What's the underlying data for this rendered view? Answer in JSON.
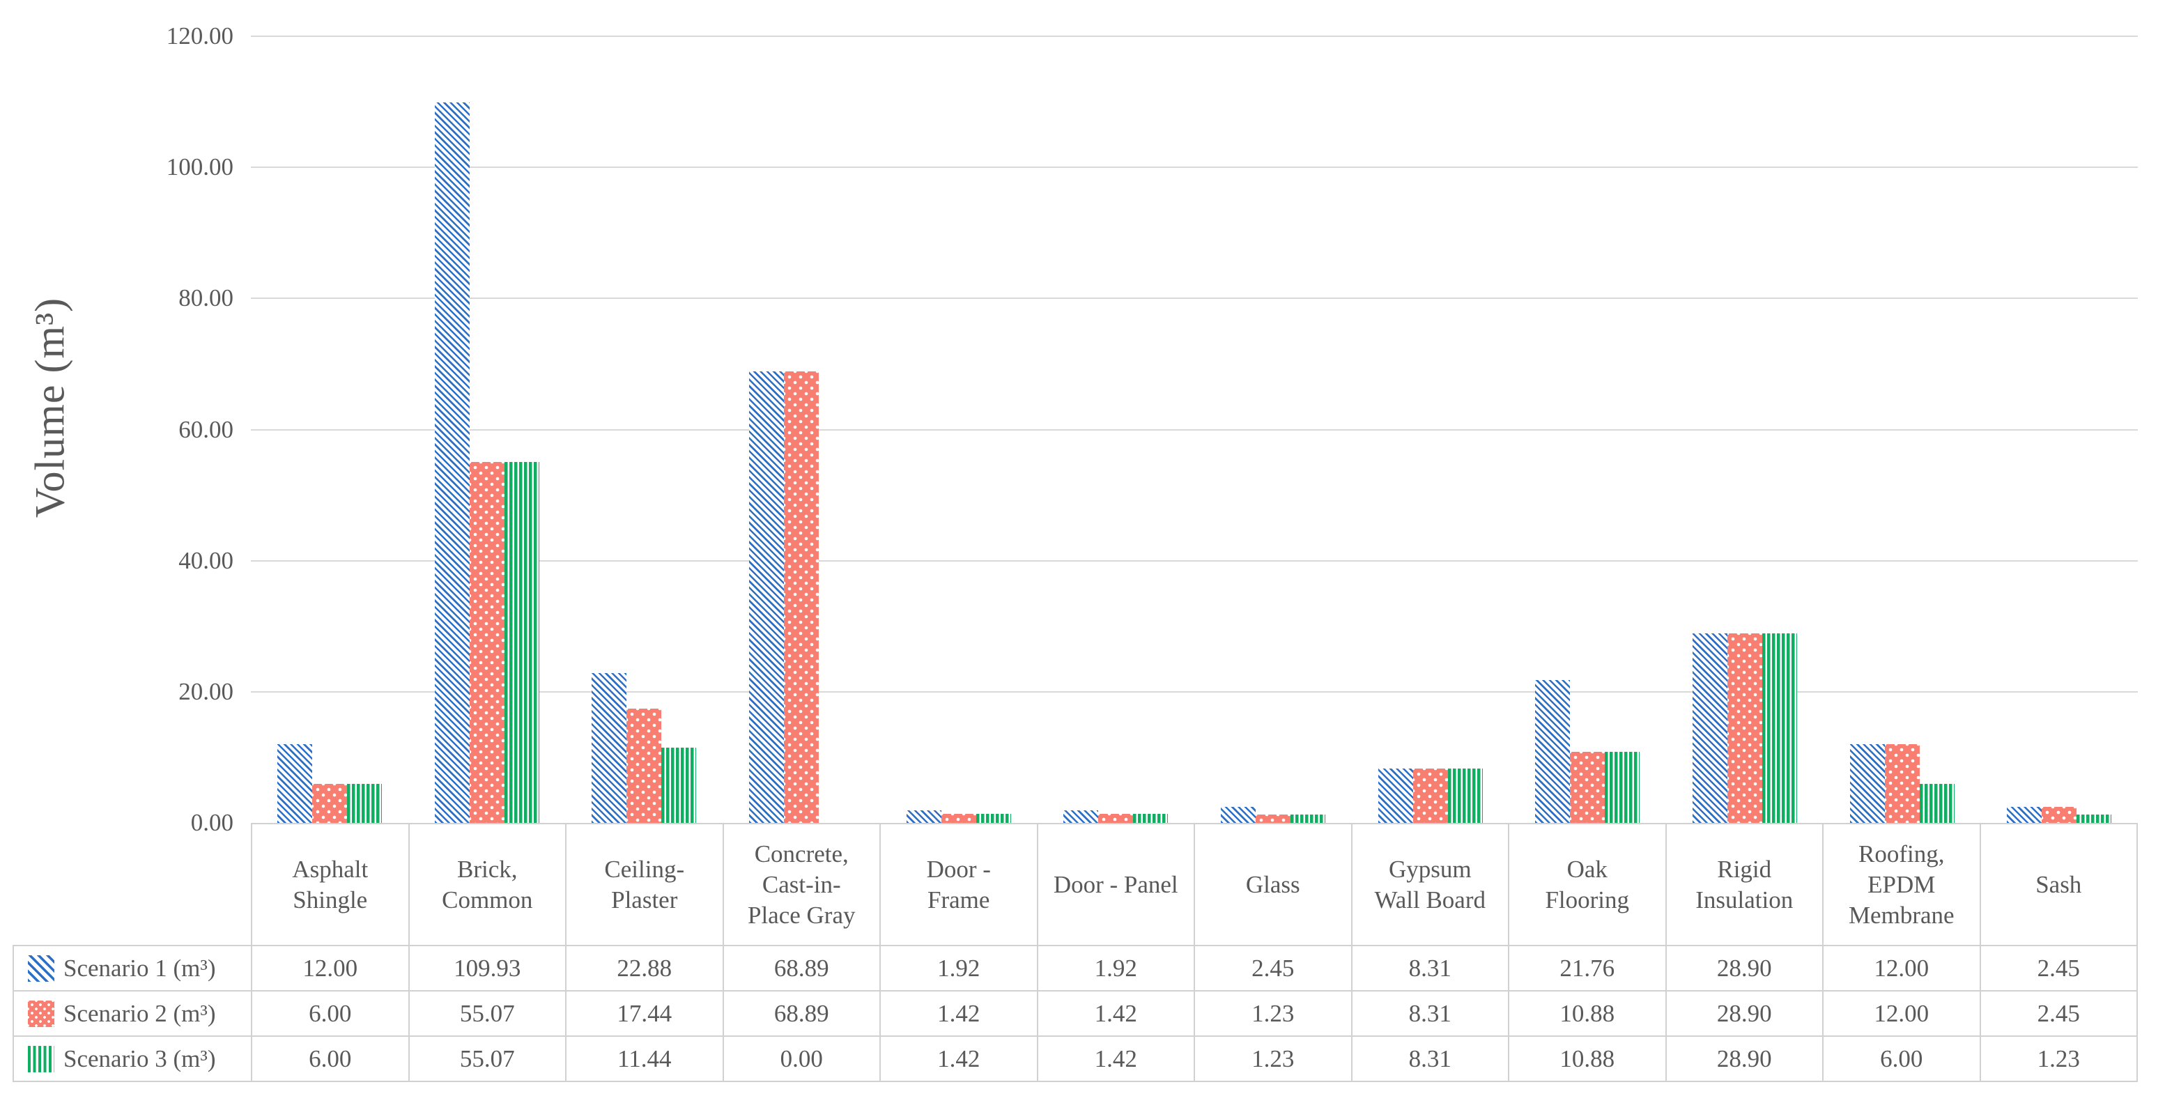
{
  "page": {
    "background": "#FFFFFF"
  },
  "chart_data": {
    "type": "bar",
    "title": "",
    "ylabel": "Volume (m³)",
    "xlabel": "",
    "ylim": [
      0,
      120
    ],
    "ytick_step": 20,
    "y_ticks": [
      "120.00",
      "100.00",
      "80.00",
      "60.00",
      "40.00",
      "20.00",
      "0.00"
    ],
    "grid": true,
    "legend_position": "data-table-left-column",
    "categories": [
      "Asphalt Shingle",
      "Brick, Common",
      "Ceiling-Plaster",
      "Concrete, Cast-in-Place Gray",
      "Door - Frame",
      "Door - Panel",
      "Glass",
      "Gypsum Wall Board",
      "Oak Flooring",
      "Rigid Insulation",
      "Roofing, EPDM Membrane",
      "Sash"
    ],
    "series": [
      {
        "name": "Scenario 1 (m³)",
        "pattern": "diagonal-stripes-blue",
        "color": "#2E6FC6",
        "values": [
          12.0,
          109.93,
          22.88,
          68.89,
          1.92,
          1.92,
          2.45,
          8.31,
          21.76,
          28.9,
          12.0,
          2.45
        ]
      },
      {
        "name": "Scenario 2 (m³)",
        "pattern": "white-dots-on-salmon",
        "color": "#F87E72",
        "values": [
          6.0,
          55.07,
          17.44,
          68.89,
          1.42,
          1.42,
          1.23,
          8.31,
          10.88,
          28.9,
          12.0,
          2.45
        ]
      },
      {
        "name": "Scenario 3 (m³)",
        "pattern": "vertical-stripes-green",
        "color": "#0FAE62",
        "values": [
          6.0,
          55.07,
          11.44,
          0.0,
          1.42,
          1.42,
          1.23,
          8.31,
          10.88,
          28.9,
          6.0,
          1.23
        ]
      }
    ],
    "value_format": "0.00",
    "colors": {
      "gridline": "#D9D9D9",
      "text": "#595959",
      "table_border": "#D1D1D1",
      "background": "#FFFFFF"
    }
  }
}
